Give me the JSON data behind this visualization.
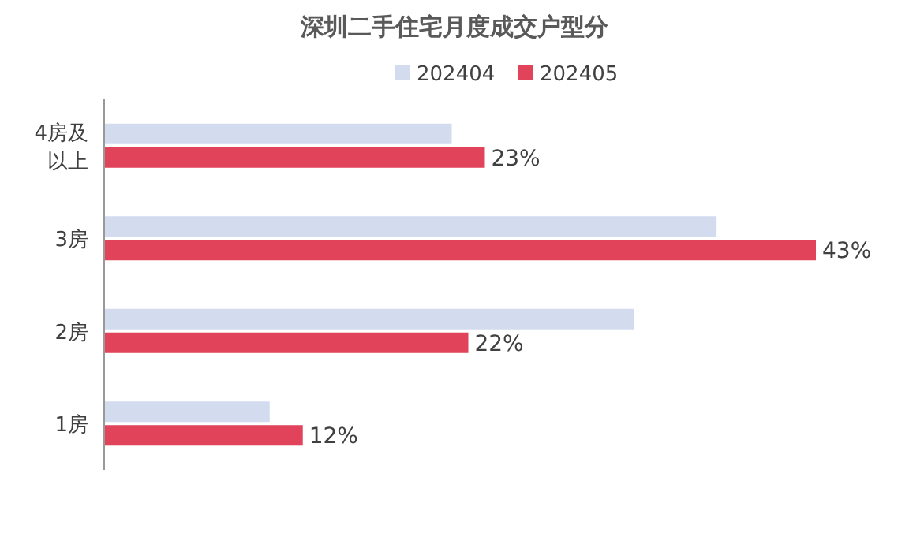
{
  "chart_data": {
    "type": "bar",
    "orientation": "horizontal",
    "title": "深圳二手住宅月度成交户型分",
    "categories": [
      "4房及以上",
      "3房",
      "2房",
      "1房"
    ],
    "legend": "top",
    "series": [
      {
        "name": "202404",
        "color": "#d3dcef",
        "values": [
          21,
          37,
          32,
          10
        ]
      },
      {
        "name": "202405",
        "color": "#e0435a",
        "values": [
          23,
          43,
          22,
          12
        ],
        "value_labels": [
          "23%",
          "43%",
          "22%",
          "12%"
        ]
      }
    ]
  }
}
